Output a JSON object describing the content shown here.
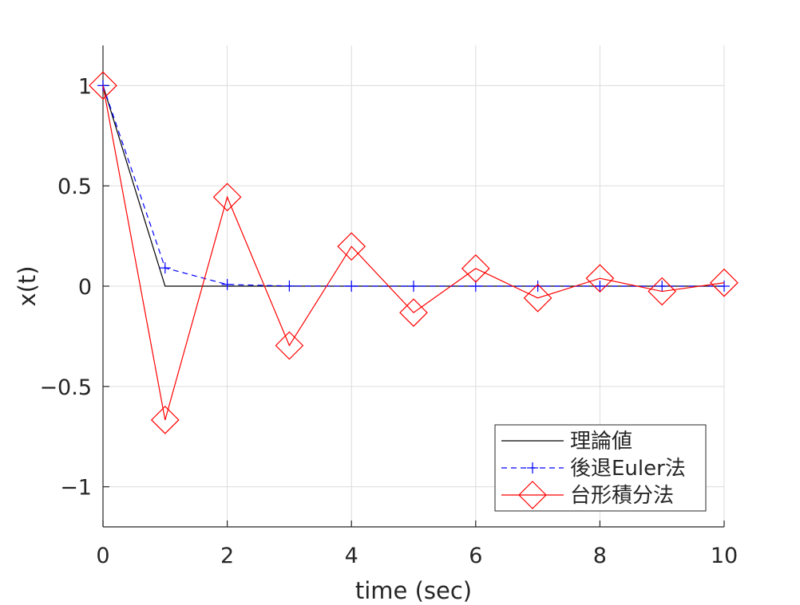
{
  "chart_data": {
    "type": "line",
    "title": "",
    "xlabel": "time (sec)",
    "ylabel": "x(t)",
    "xlim": [
      0,
      10
    ],
    "ylim": [
      -1.2,
      1.2
    ],
    "grid": true,
    "legend_position": "bottom-right",
    "x_ticks": [
      0,
      2,
      4,
      6,
      8,
      10
    ],
    "x_tick_labels": [
      "0",
      "2",
      "4",
      "6",
      "8",
      "10"
    ],
    "y_ticks": [
      1,
      0.5,
      0,
      -0.5,
      -1
    ],
    "y_tick_labels": [
      "1",
      "0.5",
      "0",
      "−0.5",
      "−1"
    ],
    "series": [
      {
        "name": "理論値",
        "color": "#000000",
        "line_style": "solid",
        "marker": "none",
        "x": [
          0,
          1,
          2,
          3,
          4,
          5,
          6,
          7,
          8,
          9,
          10
        ],
        "y": [
          1,
          0,
          0,
          0,
          0,
          0,
          0,
          0,
          0,
          0,
          0
        ]
      },
      {
        "name": "後退Euler法",
        "color": "#0000ff",
        "line_style": "dashed",
        "marker": "plus",
        "x": [
          0,
          1,
          2,
          3,
          4,
          5,
          6,
          7,
          8,
          9,
          10
        ],
        "y": [
          1,
          0.0909,
          0.0083,
          0.0008,
          0.0001,
          0,
          0,
          0,
          0,
          0,
          0
        ]
      },
      {
        "name": "台形積分法",
        "color": "#ff0000",
        "line_style": "solid",
        "marker": "diamond",
        "x": [
          0,
          1,
          2,
          3,
          4,
          5,
          6,
          7,
          8,
          9,
          10
        ],
        "y": [
          1,
          -0.667,
          0.444,
          -0.296,
          0.198,
          -0.132,
          0.088,
          -0.059,
          0.039,
          -0.026,
          0.017
        ]
      }
    ]
  }
}
